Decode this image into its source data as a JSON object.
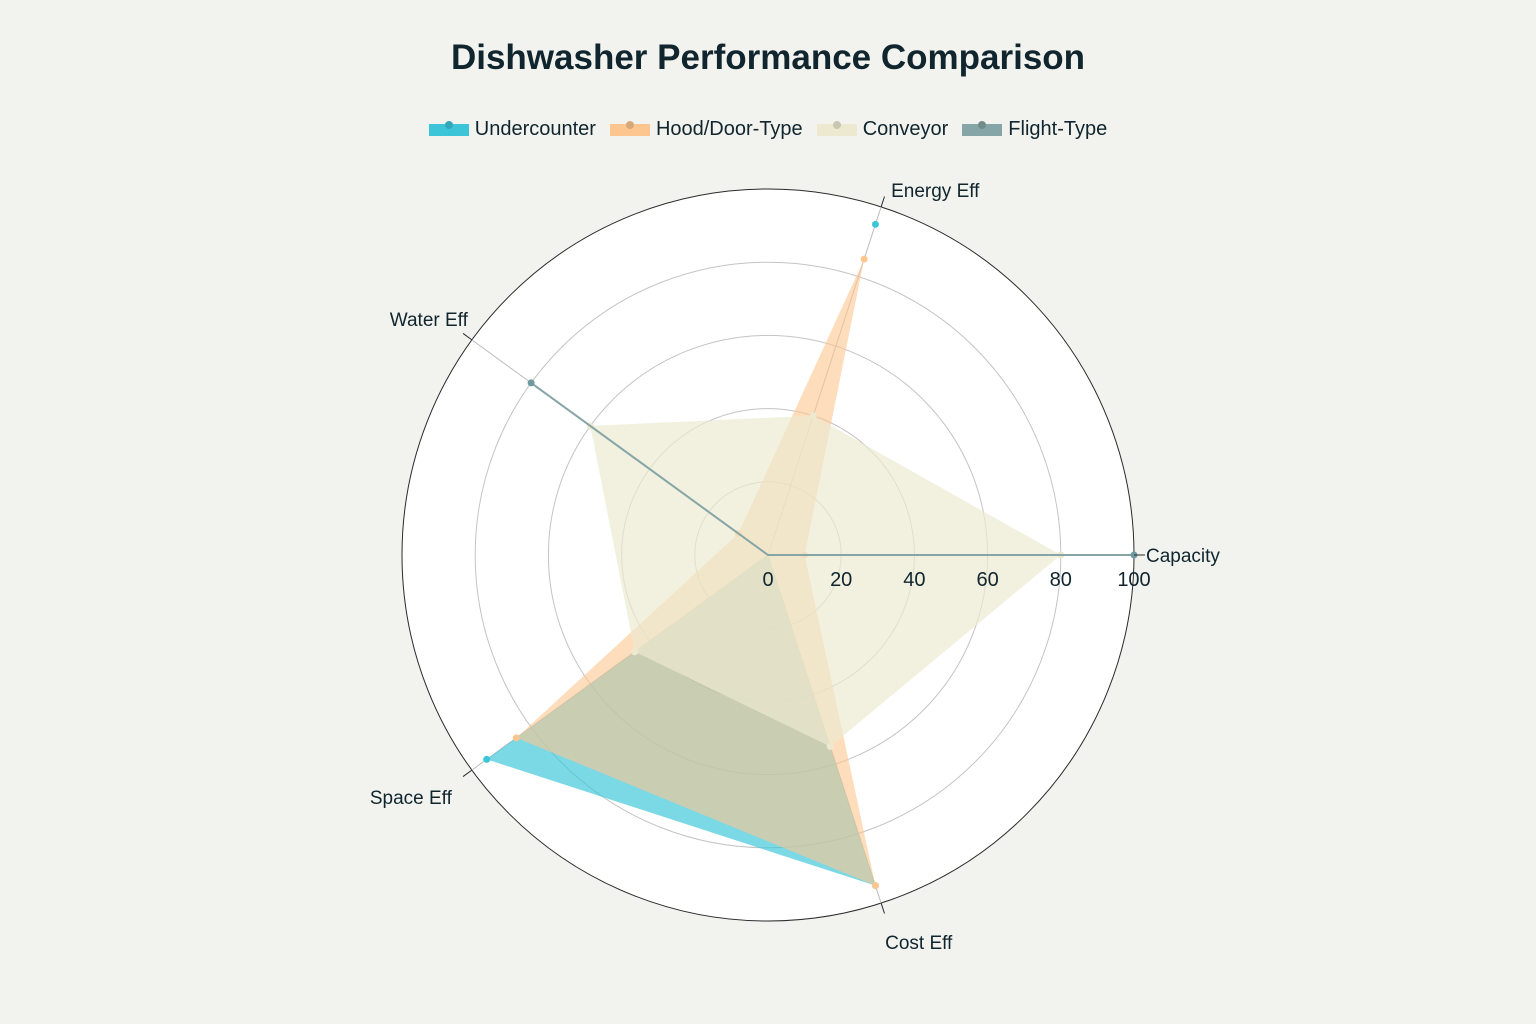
{
  "chart_data": {
    "type": "radar",
    "title": "Dishwasher Performance Comparison",
    "axes": [
      "Capacity",
      "Energy Eff",
      "Water Eff",
      "Space Eff",
      "Cost Eff"
    ],
    "rlim": [
      0,
      100
    ],
    "ticks": [
      "0",
      "20",
      "40",
      "60",
      "80",
      "100"
    ],
    "legend_position": "top-center",
    "grid": true,
    "series": [
      {
        "name": "Undercounter",
        "color": "#3cc5d9",
        "fill_opacity": 0.68,
        "values": [
          0,
          95,
          0,
          95,
          95
        ]
      },
      {
        "name": "Hood/Door-Type",
        "color": "#fdc690",
        "fill_opacity": 0.6,
        "values": [
          10,
          85,
          10,
          85,
          95
        ]
      },
      {
        "name": "Conveyor",
        "color": "#ece9d0",
        "fill_opacity": 0.7,
        "values": [
          80,
          40,
          60,
          45,
          55
        ]
      },
      {
        "name": "Flight-Type",
        "color": "#86a5a6",
        "fill_opacity": 0.55,
        "values": [
          100,
          0,
          80,
          0,
          0
        ]
      }
    ]
  }
}
